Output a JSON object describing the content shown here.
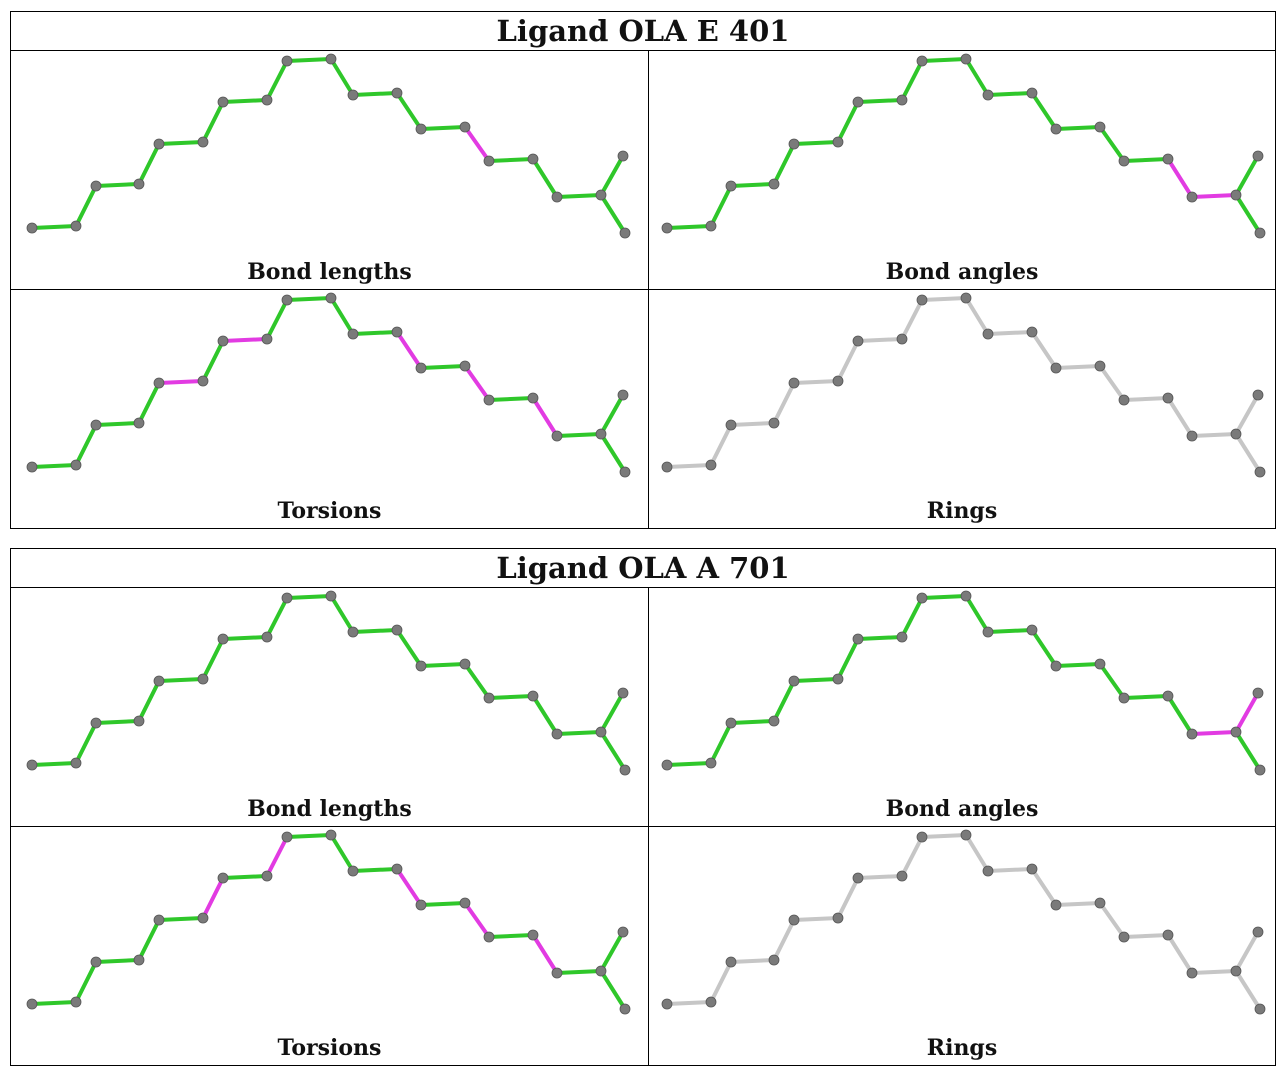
{
  "colors": {
    "ok": "#2fc72a",
    "outlier": "#e23be2",
    "inactive": "#c6c6c6",
    "atom": "#7a7a7a"
  },
  "ligands": [
    {
      "title": "Ligand OLA E 401",
      "panels": [
        {
          "label": "Bond lengths",
          "outliers": [
            13
          ]
        },
        {
          "label": "Bond angles",
          "outliers": [
            15,
            16
          ]
        },
        {
          "label": "Torsions",
          "outliers": [
            4,
            6,
            11,
            13,
            15
          ]
        },
        {
          "label": "Rings",
          "outliers": [],
          "inactive": true
        }
      ]
    },
    {
      "title": "Ligand OLA A 701",
      "panels": [
        {
          "label": "Bond lengths",
          "outliers": []
        },
        {
          "label": "Bond angles",
          "outliers": [
            16,
            17
          ]
        },
        {
          "label": "Torsions",
          "outliers": [
            5,
            7,
            11,
            13,
            15
          ]
        },
        {
          "label": "Rings",
          "outliers": [],
          "inactive": true
        }
      ]
    }
  ]
}
